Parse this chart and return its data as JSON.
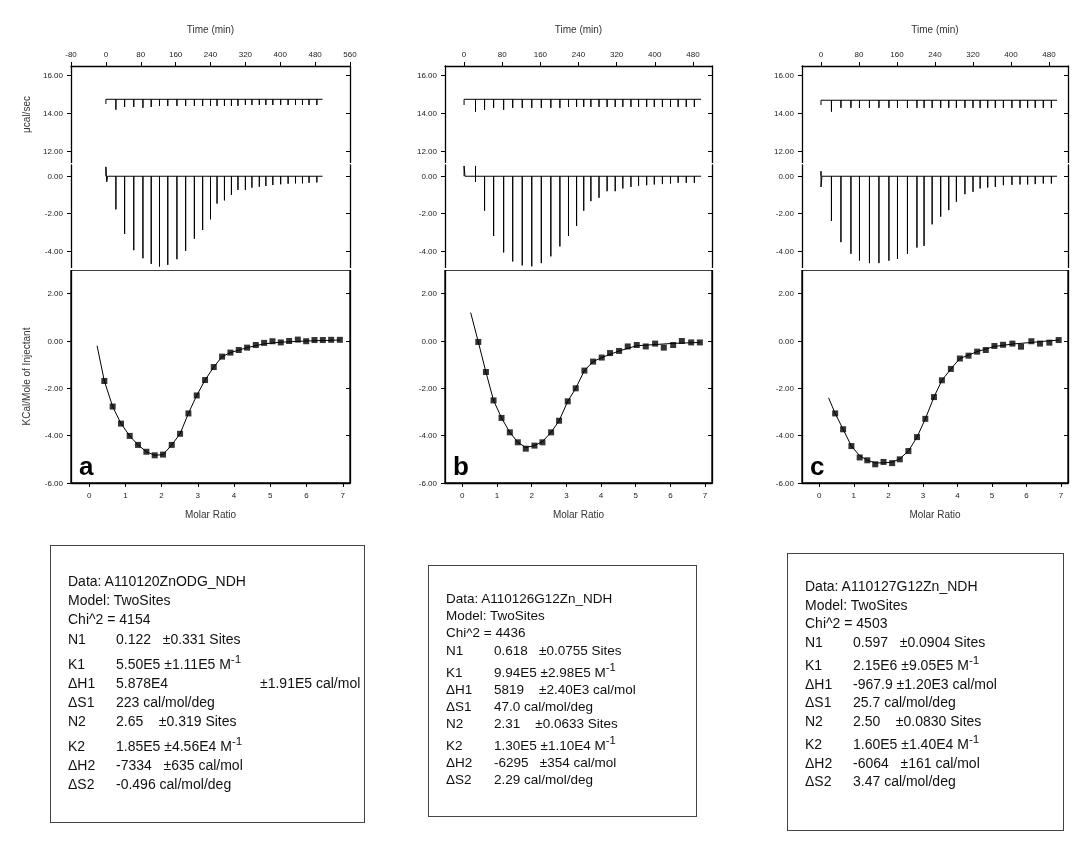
{
  "chart_data": [
    {
      "type": "line",
      "xlabel": "Time (min)",
      "ylabel": "μcal/sec",
      "xlim": [
        -80,
        560
      ],
      "xticks": [
        -80,
        0,
        80,
        160,
        240,
        320,
        400,
        480,
        560
      ],
      "ylim": [
        11.4,
        16.5
      ],
      "yticks": [
        {
          "value": 12,
          "label": "12.00"
        },
        {
          "value": 14,
          "label": "14.00"
        },
        {
          "value": 16,
          "label": "16.00"
        }
      ],
      "series": [
        {
          "color": "#000000",
          "x": [
            0,
            0,
            23,
            23,
            23,
            43,
            43,
            43,
            64,
            64,
            64,
            85,
            85,
            85,
            104,
            104,
            104,
            123,
            123,
            123,
            142,
            142,
            142,
            163,
            163,
            163,
            183,
            183,
            183,
            203,
            203,
            203,
            222,
            222,
            222,
            240,
            240,
            240,
            255,
            255,
            255,
            272,
            272,
            272,
            288,
            288,
            288,
            303,
            303,
            303,
            320,
            320,
            320,
            335,
            335,
            335,
            352,
            352,
            352,
            367,
            367,
            367,
            383,
            383,
            383,
            401,
            401,
            401,
            418,
            418,
            418,
            435,
            435,
            435,
            451,
            451,
            451,
            466,
            466,
            466,
            484,
            484,
            484,
            497
          ],
          "values": [
            14.5,
            14.75,
            14.75,
            14.2,
            14.75,
            14.75,
            14.35,
            14.75,
            14.75,
            14.35,
            14.75,
            14.75,
            14.3,
            14.75,
            14.75,
            14.35,
            14.75,
            14.75,
            14.4,
            14.75,
            14.75,
            14.4,
            14.75,
            14.75,
            14.4,
            14.75,
            14.75,
            14.4,
            14.75,
            14.75,
            14.4,
            14.75,
            14.75,
            14.4,
            14.75,
            14.75,
            14.4,
            14.75,
            14.75,
            14.4,
            14.75,
            14.75,
            14.4,
            14.75,
            14.75,
            14.4,
            14.75,
            14.75,
            14.4,
            14.75,
            14.75,
            14.45,
            14.75,
            14.75,
            14.45,
            14.75,
            14.75,
            14.45,
            14.75,
            14.75,
            14.45,
            14.75,
            14.75,
            14.45,
            14.75,
            14.75,
            14.45,
            14.75,
            14.75,
            14.45,
            14.75,
            14.75,
            14.45,
            14.75,
            14.75,
            14.45,
            14.75,
            14.75,
            14.45,
            14.75,
            14.75,
            14.45,
            14.75,
            14.75
          ]
        }
      ]
    },
    {
      "type": "line",
      "xlim": [
        -80,
        560
      ],
      "ylim": [
        -4.9,
        0.6
      ],
      "yticks": [
        {
          "value": -4,
          "label": "-4.00"
        },
        {
          "value": -2,
          "label": "-2.00"
        },
        {
          "value": 0,
          "label": "0.00"
        }
      ],
      "tick_labels": "y",
      "series": [
        {
          "color": "#000000",
          "x": [
            0,
            0,
            2,
            4,
            23,
            23,
            23,
            43,
            43,
            43,
            64,
            64,
            64,
            85,
            85,
            85,
            104,
            104,
            104,
            123,
            123,
            123,
            142,
            142,
            142,
            163,
            163,
            163,
            183,
            183,
            183,
            203,
            203,
            203,
            222,
            222,
            222,
            240,
            240,
            240,
            255,
            255,
            255,
            272,
            272,
            272,
            288,
            288,
            288,
            303,
            303,
            303,
            320,
            320,
            320,
            335,
            335,
            335,
            352,
            352,
            352,
            367,
            367,
            367,
            383,
            383,
            383,
            401,
            401,
            401,
            418,
            418,
            418,
            435,
            435,
            435,
            451,
            451,
            451,
            466,
            466,
            466,
            484,
            484,
            484,
            497
          ],
          "values": [
            0,
            0.5,
            -0.3,
            0,
            0,
            -1.77,
            0,
            0,
            -3.08,
            0,
            0,
            -3.95,
            0,
            0,
            -4.38,
            0,
            0,
            -4.68,
            0,
            0,
            -4.82,
            0,
            0,
            -4.73,
            0,
            0,
            -4.43,
            0,
            0,
            -3.98,
            0,
            0,
            -3.34,
            0,
            0,
            -2.87,
            0,
            0,
            -2.3,
            0,
            0,
            -1.46,
            0,
            0,
            -1.29,
            0,
            0,
            -0.99,
            0,
            0,
            -0.73,
            0,
            0,
            -0.73,
            0,
            0,
            -0.61,
            0,
            0,
            -0.56,
            0,
            0,
            -0.52,
            0,
            0,
            -0.47,
            0,
            0,
            -0.43,
            0,
            0,
            -0.4,
            0,
            0,
            -0.38,
            0,
            0,
            -0.38,
            0,
            0,
            -0.35,
            0,
            0,
            -0.33,
            0,
            0
          ]
        }
      ]
    },
    {
      "type": "scatter",
      "xlabel": "Molar Ratio",
      "ylabel": "KCal/Mole of Injectant",
      "xlim": [
        -0.5,
        7.2
      ],
      "xticks": [
        0,
        1,
        2,
        3,
        4,
        5,
        6,
        7
      ],
      "ylim": [
        -6,
        3
      ],
      "yticks": [
        {
          "value": -6,
          "label": "-6.00"
        },
        {
          "value": -4,
          "label": "-4.00"
        },
        {
          "value": -2,
          "label": "-2.00"
        },
        {
          "value": 0,
          "label": "0.00"
        },
        {
          "value": 2,
          "label": "2.00"
        }
      ],
      "annotations": [
        "a"
      ],
      "x": [
        0.42,
        0.65,
        0.88,
        1.12,
        1.35,
        1.58,
        1.81,
        2.04,
        2.28,
        2.51,
        2.74,
        2.97,
        3.2,
        3.44,
        3.67,
        3.9,
        4.13,
        4.36,
        4.6,
        4.83,
        5.06,
        5.29,
        5.52,
        5.76,
        5.99,
        6.22,
        6.45,
        6.68,
        6.92
      ],
      "series": [
        {
          "color": "#000000",
          "marker": "square",
          "values": [
            -1.69,
            -2.77,
            -3.49,
            -4.01,
            -4.39,
            -4.68,
            -4.83,
            -4.8,
            -4.39,
            -3.92,
            -3.06,
            -2.3,
            -1.65,
            -1.1,
            -0.66,
            -0.49,
            -0.38,
            -0.28,
            -0.17,
            -0.08,
            -0.01,
            -0.06,
            0,
            0.06,
            -0.01,
            0.04,
            0.04,
            0.05,
            0.05
          ]
        },
        {
          "type": "line",
          "color": "#000000",
          "x": [
            0.22,
            0.42,
            0.65,
            0.88,
            1.12,
            1.35,
            1.58,
            1.81,
            2.04,
            2.28,
            2.51,
            2.74,
            2.97,
            3.2,
            3.44,
            3.67,
            3.9,
            4.36,
            4.83,
            5.29,
            5.99,
            6.92
          ],
          "values": [
            -0.2,
            -1.69,
            -2.77,
            -3.49,
            -4.01,
            -4.39,
            -4.68,
            -4.83,
            -4.8,
            -4.39,
            -3.92,
            -3.06,
            -2.3,
            -1.65,
            -1.1,
            -0.66,
            -0.49,
            -0.28,
            -0.12,
            -0.05,
            0,
            0.04
          ]
        }
      ]
    },
    {
      "type": "other",
      "annotations": [
        "Data: A110120ZnODG_NDH",
        "Model: TwoSites",
        "Chi^2 = 4154",
        "N1\t0.122   ±0.331 Sites",
        "K1\t5.50E5 ±1.11E5 M$^{-1}$",
        "ΔH1\t5.878E4\t\t±1.91E5 cal/mol",
        "ΔS1\t223 cal/mol/deg",
        "N2\t2.65    ±0.319 Sites",
        "K2\t1.85E5 ±4.56E4 M$^{-1}$",
        "ΔH2\t-7334   ±635 cal/mol",
        "ΔS2\t-0.496 cal/mol/deg"
      ]
    },
    {
      "type": "line",
      "xlabel": "Time (min)",
      "xlim": [
        -40,
        520
      ],
      "xticks": [
        0,
        80,
        160,
        240,
        320,
        400,
        480
      ],
      "ylim": [
        11.4,
        16.5
      ],
      "yticks": [
        {
          "value": 12,
          "label": "12.00"
        },
        {
          "value": 14,
          "label": "14.00"
        },
        {
          "value": 16,
          "label": "16.00"
        }
      ],
      "series": [
        {
          "color": "#000000",
          "x": [
            0,
            0,
            24,
            24,
            24,
            43,
            43,
            43,
            62,
            62,
            62,
            83,
            83,
            83,
            102,
            102,
            102,
            122,
            122,
            122,
            142,
            142,
            142,
            162,
            162,
            162,
            182,
            182,
            182,
            201,
            201,
            201,
            219,
            219,
            219,
            236,
            236,
            236,
            251,
            251,
            251,
            266,
            266,
            266,
            283,
            283,
            283,
            300,
            300,
            300,
            317,
            317,
            317,
            333,
            333,
            333,
            350,
            350,
            350,
            366,
            366,
            366,
            383,
            383,
            383,
            399,
            399,
            399,
            416,
            416,
            416,
            433,
            433,
            433,
            449,
            449,
            449,
            466,
            466,
            466,
            483,
            483,
            483,
            497
          ],
          "values": [
            14.45,
            14.75,
            14.75,
            14.1,
            14.75,
            14.75,
            14.2,
            14.75,
            14.75,
            14.3,
            14.75,
            14.75,
            14.2,
            14.75,
            14.75,
            14.3,
            14.75,
            14.75,
            14.3,
            14.75,
            14.75,
            14.3,
            14.75,
            14.75,
            14.3,
            14.75,
            14.75,
            14.3,
            14.75,
            14.75,
            14.3,
            14.75,
            14.75,
            14.35,
            14.75,
            14.75,
            14.35,
            14.75,
            14.75,
            14.35,
            14.75,
            14.75,
            14.35,
            14.75,
            14.75,
            14.35,
            14.75,
            14.75,
            14.35,
            14.75,
            14.75,
            14.35,
            14.75,
            14.75,
            14.35,
            14.75,
            14.75,
            14.35,
            14.75,
            14.75,
            14.35,
            14.75,
            14.75,
            14.35,
            14.75,
            14.75,
            14.35,
            14.75,
            14.75,
            14.35,
            14.75,
            14.75,
            14.35,
            14.75,
            14.75,
            14.35,
            14.75,
            14.75,
            14.35,
            14.75,
            14.75,
            14.35,
            14.75,
            14.75
          ]
        }
      ]
    },
    {
      "type": "line",
      "xlim": [
        -40,
        520
      ],
      "ylim": [
        -4.9,
        0.6
      ],
      "yticks": [
        {
          "value": -4,
          "label": "-4.00"
        },
        {
          "value": -2,
          "label": "-2.00"
        },
        {
          "value": 0,
          "label": "0.00"
        }
      ],
      "tick_labels": "y",
      "series": [
        {
          "color": "#000000",
          "x": [
            0,
            0,
            2,
            24,
            24,
            24,
            24,
            43,
            43,
            43,
            62,
            62,
            62,
            83,
            83,
            83,
            102,
            102,
            102,
            122,
            122,
            122,
            142,
            142,
            142,
            162,
            162,
            162,
            182,
            182,
            182,
            201,
            201,
            201,
            219,
            219,
            219,
            236,
            236,
            236,
            251,
            251,
            251,
            266,
            266,
            266,
            283,
            283,
            283,
            300,
            300,
            300,
            317,
            317,
            317,
            333,
            333,
            333,
            350,
            350,
            350,
            366,
            366,
            366,
            383,
            383,
            383,
            399,
            399,
            399,
            416,
            416,
            416,
            433,
            433,
            433,
            449,
            449,
            449,
            466,
            466,
            466,
            483,
            483,
            483,
            497
          ],
          "values": [
            0,
            0.55,
            0,
            0,
            0.55,
            -0.3,
            0,
            0,
            -1.84,
            0,
            0,
            -3.19,
            0,
            0,
            -4.07,
            0,
            0,
            -4.55,
            0,
            0,
            -4.76,
            0,
            0,
            -4.81,
            0,
            0,
            -4.64,
            0,
            0,
            -4.28,
            0,
            0,
            -3.75,
            0,
            0,
            -3.19,
            0,
            0,
            -2.65,
            0,
            0,
            -1.84,
            0,
            0,
            -1.33,
            0,
            0,
            -1.15,
            0,
            0,
            -0.8,
            0,
            0,
            -0.8,
            0,
            0,
            -0.65,
            0,
            0,
            -0.57,
            0,
            0,
            -0.51,
            0,
            0,
            -0.48,
            0,
            0,
            -0.44,
            0,
            0,
            -0.42,
            0,
            0,
            -0.39,
            0,
            0,
            -0.35,
            0,
            0,
            -0.35,
            0,
            0,
            -0.35,
            0,
            0
          ]
        }
      ]
    },
    {
      "type": "scatter",
      "xlabel": "Molar Ratio",
      "xlim": [
        -0.5,
        7.2
      ],
      "xticks": [
        0,
        1,
        2,
        3,
        4,
        5,
        6,
        7
      ],
      "ylim": [
        -6,
        3
      ],
      "yticks": [
        {
          "value": -6,
          "label": "-6.00"
        },
        {
          "value": -4,
          "label": "-4.00"
        },
        {
          "value": -2,
          "label": "-2.00"
        },
        {
          "value": 0,
          "label": "0.00"
        },
        {
          "value": 2,
          "label": "2.00"
        }
      ],
      "annotations": [
        "b"
      ],
      "x": [
        0.46,
        0.68,
        0.9,
        1.13,
        1.37,
        1.6,
        1.83,
        2.08,
        2.31,
        2.56,
        2.79,
        3.04,
        3.27,
        3.52,
        3.77,
        4.02,
        4.26,
        4.52,
        4.77,
        5.03,
        5.29,
        5.56,
        5.81,
        6.08,
        6.33,
        6.6,
        6.85
      ],
      "series": [
        {
          "color": "#000000",
          "marker": "square",
          "values": [
            -0.04,
            -1.31,
            -2.51,
            -3.25,
            -3.86,
            -4.28,
            -4.55,
            -4.42,
            -4.28,
            -3.86,
            -3.37,
            -2.55,
            -2,
            -1.25,
            -0.87,
            -0.7,
            -0.51,
            -0.42,
            -0.23,
            -0.17,
            -0.23,
            -0.11,
            -0.28,
            -0.17,
            0,
            -0.06,
            -0.06
          ]
        },
        {
          "type": "line",
          "color": "#000000",
          "x": [
            0.24,
            0.46,
            0.68,
            0.9,
            1.13,
            1.37,
            1.6,
            1.83,
            2.08,
            2.31,
            2.56,
            2.79,
            3.04,
            3.27,
            3.52,
            3.77,
            4.02,
            4.52,
            5.03,
            5.56,
            6.08,
            6.85
          ],
          "values": [
            1.2,
            -0.04,
            -1.31,
            -2.51,
            -3.25,
            -3.86,
            -4.28,
            -4.5,
            -4.42,
            -4.25,
            -3.86,
            -3.37,
            -2.55,
            -2,
            -1.25,
            -0.87,
            -0.7,
            -0.42,
            -0.2,
            -0.15,
            -0.1,
            -0.06
          ]
        }
      ]
    },
    {
      "type": "other",
      "annotations": [
        "Data: A110126G12Zn_NDH",
        "Model: TwoSites",
        "Chi^2 = 4436",
        "N1\t0.618   ±0.0755 Sites",
        "K1\t9.94E5 ±2.98E5 M$^{-1}$",
        "ΔH1\t5819    ±2.40E3 cal/mol",
        "ΔS1\t47.0 cal/mol/deg",
        "N2\t2.31    ±0.0633 Sites",
        "K2\t1.30E5 ±1.10E4 M$^{-1}$",
        "ΔH2\t-6295   ±354 cal/mol",
        "ΔS2\t2.29 cal/mol/deg"
      ]
    },
    {
      "type": "line",
      "xlabel": "Time (min)",
      "xlim": [
        -40,
        520
      ],
      "xticks": [
        0,
        80,
        160,
        240,
        320,
        400,
        480
      ],
      "ylim": [
        11.4,
        16.5
      ],
      "yticks": [
        {
          "value": 12,
          "label": "12.00"
        },
        {
          "value": 14,
          "label": "14.00"
        },
        {
          "value": 16,
          "label": "16.00"
        }
      ],
      "series": [
        {
          "color": "#000000",
          "x": [
            0,
            0,
            22,
            22,
            22,
            42,
            42,
            42,
            63,
            63,
            63,
            81,
            81,
            81,
            102,
            102,
            102,
            122,
            122,
            122,
            143,
            143,
            143,
            161,
            161,
            161,
            182,
            182,
            182,
            202,
            202,
            202,
            217,
            217,
            217,
            234,
            234,
            234,
            252,
            252,
            252,
            269,
            269,
            269,
            285,
            285,
            285,
            303,
            303,
            303,
            320,
            320,
            320,
            335,
            335,
            335,
            351,
            351,
            351,
            367,
            367,
            367,
            384,
            384,
            384,
            402,
            402,
            402,
            419,
            419,
            419,
            435,
            435,
            435,
            451,
            451,
            451,
            468,
            468,
            468,
            485,
            485,
            485,
            497
          ],
          "values": [
            14.45,
            14.7,
            14.7,
            14.1,
            14.7,
            14.7,
            14.3,
            14.7,
            14.7,
            14.3,
            14.7,
            14.7,
            14.3,
            14.7,
            14.7,
            14.3,
            14.7,
            14.7,
            14.3,
            14.7,
            14.7,
            14.3,
            14.7,
            14.7,
            14.3,
            14.7,
            14.7,
            14.3,
            14.7,
            14.7,
            14.3,
            14.7,
            14.7,
            14.3,
            14.7,
            14.7,
            14.3,
            14.7,
            14.7,
            14.3,
            14.7,
            14.7,
            14.3,
            14.7,
            14.7,
            14.3,
            14.7,
            14.7,
            14.3,
            14.7,
            14.7,
            14.3,
            14.7,
            14.7,
            14.3,
            14.7,
            14.7,
            14.3,
            14.7,
            14.7,
            14.3,
            14.7,
            14.7,
            14.3,
            14.7,
            14.7,
            14.3,
            14.7,
            14.7,
            14.3,
            14.7,
            14.7,
            14.3,
            14.7,
            14.7,
            14.3,
            14.7,
            14.7,
            14.3,
            14.7,
            14.7,
            14.3,
            14.7,
            14.7
          ]
        }
      ]
    },
    {
      "type": "line",
      "xlim": [
        -40,
        520
      ],
      "ylim": [
        -4.9,
        0.6
      ],
      "yticks": [
        {
          "value": -4,
          "label": "-4.00"
        },
        {
          "value": -2,
          "label": "-2.00"
        },
        {
          "value": 0,
          "label": "0.00"
        }
      ],
      "tick_labels": "y",
      "series": [
        {
          "color": "#000000",
          "x": [
            0,
            0,
            0,
            2,
            22,
            22,
            22,
            42,
            42,
            42,
            63,
            63,
            63,
            81,
            81,
            81,
            102,
            102,
            102,
            122,
            122,
            122,
            143,
            143,
            143,
            161,
            161,
            161,
            182,
            182,
            182,
            202,
            202,
            202,
            217,
            217,
            217,
            234,
            234,
            234,
            252,
            252,
            252,
            269,
            269,
            269,
            285,
            285,
            285,
            303,
            303,
            303,
            320,
            320,
            320,
            335,
            335,
            335,
            351,
            351,
            351,
            367,
            367,
            367,
            384,
            384,
            384,
            402,
            402,
            402,
            419,
            419,
            419,
            435,
            435,
            435,
            451,
            451,
            451,
            468,
            468,
            468,
            485,
            485,
            485,
            497
          ],
          "values": [
            0,
            0.27,
            -0.57,
            0,
            0,
            -2.39,
            0,
            0,
            -3.52,
            0,
            0,
            -4.14,
            0,
            0,
            -4.5,
            0,
            0,
            -4.64,
            0,
            0,
            -4.64,
            0,
            0,
            -4.51,
            0,
            0,
            -4.41,
            0,
            0,
            -4.14,
            0,
            0,
            -3.81,
            0,
            0,
            -3.72,
            0,
            0,
            -2.57,
            0,
            0,
            -2.16,
            0,
            0,
            -1.81,
            0,
            0,
            -1.36,
            0,
            0,
            -0.96,
            0,
            0,
            -0.83,
            0,
            0,
            -0.65,
            0,
            0,
            -0.6,
            0,
            0,
            -0.57,
            0,
            0,
            -0.48,
            0,
            0,
            -0.46,
            0,
            0,
            -0.44,
            0,
            0,
            -0.44,
            0,
            0,
            -0.42,
            0,
            0,
            -0.39,
            0,
            0,
            -0.39,
            0,
            0
          ]
        }
      ]
    },
    {
      "type": "scatter",
      "xlabel": "Molar Ratio",
      "xlim": [
        -0.5,
        7.2
      ],
      "xticks": [
        0,
        1,
        2,
        3,
        4,
        5,
        6,
        7
      ],
      "ylim": [
        -6,
        3
      ],
      "yticks": [
        {
          "value": -6,
          "label": "-6.00"
        },
        {
          "value": -4,
          "label": "-4.00"
        },
        {
          "value": -2,
          "label": "-2.00"
        },
        {
          "value": 0,
          "label": "0.00"
        },
        {
          "value": 2,
          "label": "2.00"
        }
      ],
      "annotations": [
        "c"
      ],
      "x": [
        0.46,
        0.69,
        0.93,
        1.17,
        1.39,
        1.62,
        1.86,
        2.11,
        2.33,
        2.58,
        2.83,
        3.07,
        3.32,
        3.55,
        3.81,
        4.07,
        4.32,
        4.57,
        4.82,
        5.07,
        5.32,
        5.59,
        5.84,
        6.14,
        6.39,
        6.66,
        6.93
      ],
      "series": [
        {
          "color": "#000000",
          "marker": "square",
          "values": [
            -3.06,
            -3.73,
            -4.44,
            -4.92,
            -5.04,
            -5.21,
            -5.11,
            -5.16,
            -5,
            -4.65,
            -4.06,
            -3.29,
            -2.37,
            -1.66,
            -1.18,
            -0.74,
            -0.62,
            -0.45,
            -0.38,
            -0.21,
            -0.16,
            -0.11,
            -0.24,
            -0.01,
            -0.11,
            -0.07,
            0.04
          ]
        },
        {
          "type": "line",
          "color": "#000000",
          "x": [
            0.27,
            0.46,
            0.69,
            0.93,
            1.17,
            1.39,
            1.62,
            1.86,
            2.11,
            2.33,
            2.58,
            2.83,
            3.07,
            3.32,
            3.55,
            3.81,
            4.07,
            4.57,
            5.07,
            5.59,
            6.14,
            6.93
          ],
          "values": [
            -2.4,
            -3.06,
            -3.73,
            -4.44,
            -4.85,
            -5.04,
            -5.15,
            -5.15,
            -5.12,
            -4.98,
            -4.65,
            -4.06,
            -3.29,
            -2.37,
            -1.66,
            -1.18,
            -0.74,
            -0.45,
            -0.23,
            -0.13,
            -0.06,
            0.04
          ]
        }
      ]
    },
    {
      "type": "other",
      "annotations": [
        "Data: A110127G12Zn_NDH",
        "Model: TwoSites",
        "Chi^2 = 4503",
        "N1\t0.597   ±0.0904 Sites",
        "K1\t2.15E6 ±9.05E5 M$^{-1}$",
        "ΔH1\t-967.9 ±1.20E3 cal/mol",
        "ΔS1\t25.7 cal/mol/deg",
        "N2\t2.50    ±0.0830 Sites",
        "K2\t1.60E5 ±1.40E4 M$^{-1}$",
        "ΔH2\t-6064   ±161 cal/mol",
        "ΔS2\t3.47 cal/mol/deg"
      ]
    }
  ]
}
